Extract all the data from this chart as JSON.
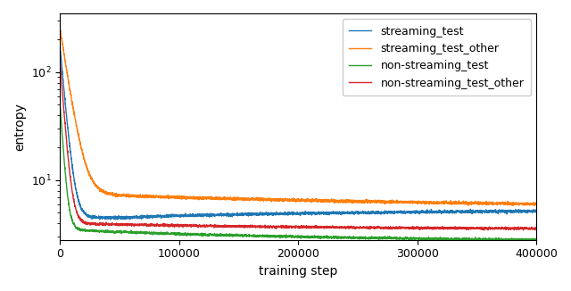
{
  "xlabel": "training step",
  "ylabel": "entropy",
  "xmin": 0,
  "xmax": 400000,
  "ymin": 2.8,
  "ymax": 350,
  "xticks": [
    0,
    100000,
    200000,
    300000,
    400000
  ],
  "series": [
    {
      "name": "streaming_test",
      "color": "#1f77b4",
      "shape": "streaming"
    },
    {
      "name": "streaming_test_other",
      "color": "#ff7f0e",
      "shape": "streaming_other"
    },
    {
      "name": "non-streaming_test",
      "color": "#2ca02c",
      "shape": "non_streaming"
    },
    {
      "name": "non-streaming_test_other",
      "color": "#d62728",
      "shape": "non_streaming_other"
    }
  ],
  "linewidth": 1.0,
  "axis_fontsize": 10,
  "tick_fontsize": 9,
  "legend_fontsize": 9,
  "streaming_start": 180,
  "streaming_tau": 3500,
  "streaming_floor": 4.5,
  "streaming_drift_amp": 0.8,
  "streaming_drift_tau": 200000,
  "streaming_drift_onset": 50000,
  "streaming_other_start": 260,
  "streaming_other_tau": 6000,
  "streaming_other_floor": 7.5,
  "streaming_other_slow_amp": -2.0,
  "streaming_other_slow_tau": 300000,
  "non_streaming_start": 55,
  "non_streaming_tau": 2500,
  "non_streaming_floor": 3.5,
  "non_streaming_slow_amp": -0.8,
  "non_streaming_slow_tau": 200000,
  "non_streaming_other_start": 130,
  "non_streaming_other_tau": 3000,
  "non_streaming_other_floor": 4.0,
  "non_streaming_other_slow_amp": -0.5,
  "non_streaming_other_slow_tau": 200000
}
